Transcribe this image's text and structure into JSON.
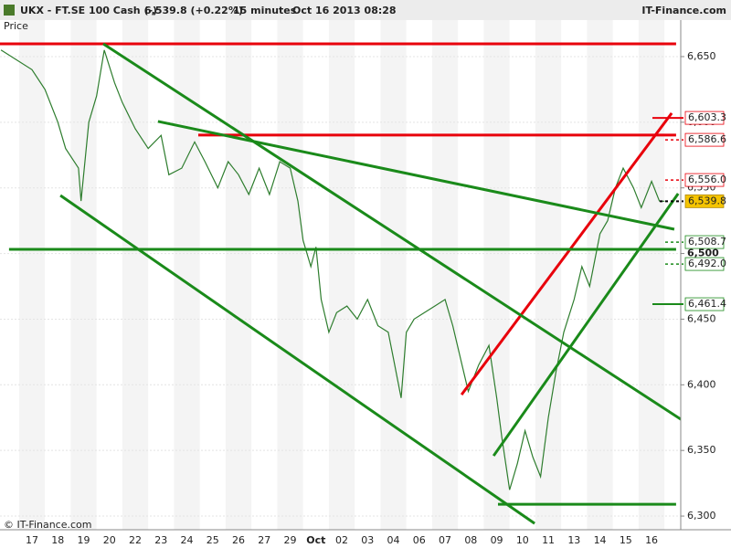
{
  "chart_data": {
    "type": "line",
    "title": "UKX - FT.SE 100 Cash (-)",
    "last": "6,539.8 (+0.22%)",
    "interval": "15 minutes",
    "date": "Oct 16 2013 08:28",
    "source": "IT-Finance.com",
    "y_label": "Price",
    "copyright": "© IT-Finance.com",
    "categories": [
      "17",
      "18",
      "19",
      "20",
      "22",
      "23",
      "24",
      "25",
      "26",
      "27",
      "29",
      "Oct",
      "02",
      "03",
      "04",
      "06",
      "07",
      "08",
      "09",
      "10",
      "11",
      "13",
      "14",
      "15",
      "16"
    ],
    "xlim": [
      -1.24,
      25.13
    ],
    "ylim": [
      6289.6,
      6677.8
    ],
    "yticks": [
      {
        "value": 6300,
        "label": "6,300"
      },
      {
        "value": 6350,
        "label": "6,350"
      },
      {
        "value": 6400,
        "label": "6,400"
      },
      {
        "value": 6450,
        "label": "6,450"
      },
      {
        "value": 6500,
        "label": "6,500"
      },
      {
        "value": 6550,
        "label": "6,550"
      },
      {
        "value": 6600,
        "label": "6,600"
      },
      {
        "value": 6650,
        "label": "6,650"
      }
    ],
    "grid": true,
    "color": "#2e7d2e",
    "x": [
      -1.2,
      0,
      0.5,
      1,
      1.3,
      1.8,
      1.9,
      2.2,
      2.5,
      2.8,
      3.2,
      3.5,
      4,
      4.5,
      5,
      5.3,
      5.8,
      6.3,
      6.7,
      7.2,
      7.6,
      8,
      8.4,
      8.8,
      9.2,
      9.6,
      10,
      10.3,
      10.5,
      10.8,
      11,
      11.2,
      11.5,
      11.8,
      12.2,
      12.6,
      13,
      13.4,
      13.8,
      14,
      14.3,
      14.5,
      14.8,
      15.2,
      15.6,
      16,
      16.3,
      16.6,
      16.9,
      17.3,
      17.7,
      18,
      18.2,
      18.5,
      18.8,
      19.1,
      19.4,
      19.7,
      20,
      20.3,
      20.6,
      21,
      21.3,
      21.6,
      22,
      22.3,
      22.6,
      22.9,
      23.3,
      23.6,
      24,
      24.3,
      24.5
    ],
    "values": [
      6655,
      6640,
      6625,
      6600,
      6580,
      6565,
      6540,
      6600,
      6620,
      6655,
      6630,
      6615,
      6595,
      6580,
      6590,
      6560,
      6565,
      6585,
      6570,
      6550,
      6570,
      6560,
      6545,
      6565,
      6545,
      6570,
      6565,
      6540,
      6510,
      6490,
      6505,
      6465,
      6440,
      6455,
      6460,
      6450,
      6465,
      6445,
      6440,
      6420,
      6390,
      6440,
      6450,
      6455,
      6460,
      6465,
      6445,
      6420,
      6395,
      6415,
      6430,
      6390,
      6360,
      6320,
      6340,
      6365,
      6345,
      6330,
      6375,
      6410,
      6440,
      6465,
      6490,
      6475,
      6515,
      6525,
      6550,
      6565,
      6550,
      6535,
      6555,
      6540,
      6539.8
    ],
    "trendlines": [
      {
        "color": "#e8000b",
        "x": [
          -1.24,
          24.95
        ],
        "values": [
          6659.7,
          6659.7
        ]
      },
      {
        "color": "#e8000b",
        "x": [
          6.44,
          24.95
        ],
        "values": [
          6590.2,
          6590.2
        ]
      },
      {
        "color": "#e8000b",
        "x": [
          16.64,
          24.78
        ],
        "values": [
          6392.5,
          6606.9
        ]
      },
      {
        "color": "#1a8a1a",
        "x": [
          -0.89,
          24.95
        ],
        "values": [
          6503.2,
          6503.2
        ]
      },
      {
        "color": "#1a8a1a",
        "x": [
          18.05,
          24.95
        ],
        "values": [
          6309.0,
          6309.0
        ]
      },
      {
        "color": "#1a8a1a",
        "x": [
          2.76,
          25.84
        ],
        "values": [
          6659.7,
          6364.7
        ]
      },
      {
        "color": "#1a8a1a",
        "x": [
          1.1,
          19.47
        ],
        "values": [
          6544.2,
          6294.4
        ]
      },
      {
        "color": "#1a8a1a",
        "x": [
          4.88,
          24.88
        ],
        "values": [
          6600.6,
          6518.5
        ]
      },
      {
        "color": "#1a8a1a",
        "x": [
          17.88,
          25.03
        ],
        "values": [
          6345.9,
          6545.6
        ]
      }
    ],
    "price_markers": [
      {
        "value": 6603.3,
        "label": "6,603.3",
        "color": "#e8000b",
        "style": "solid"
      },
      {
        "value": 6586.6,
        "label": "6,586.6",
        "color": "#e8000b",
        "style": "dashed"
      },
      {
        "value": 6556.0,
        "label": "6,556.0",
        "color": "#e8000b",
        "style": "dashed"
      },
      {
        "value": 6539.8,
        "label": "6,539.8",
        "color": "#000000",
        "style": "current"
      },
      {
        "value": 6508.7,
        "label": "6,508.7",
        "color": "#1a8a1a",
        "style": "dashed"
      },
      {
        "value": 6492.0,
        "label": "6,492.0",
        "color": "#1a8a1a",
        "style": "dashed"
      },
      {
        "value": 6461.4,
        "label": "6,461.4",
        "color": "#1a8a1a",
        "style": "solid"
      }
    ]
  }
}
